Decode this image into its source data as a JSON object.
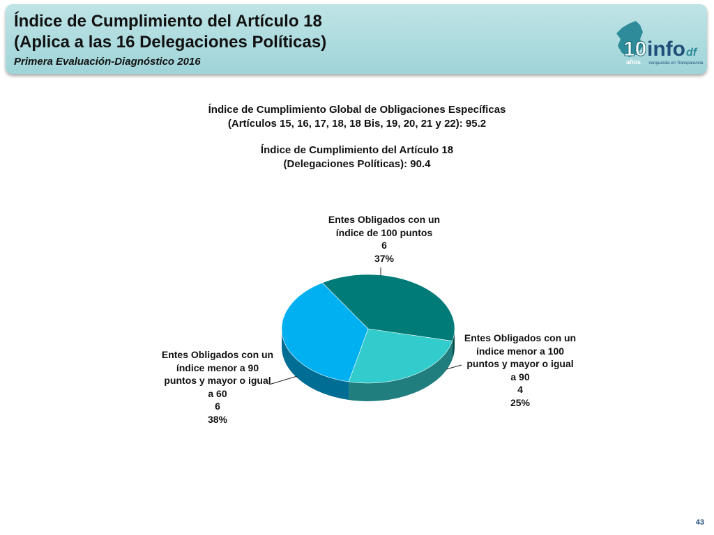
{
  "header": {
    "title_line1": "Índice de Cumplimiento del Artículo 18",
    "title_line2": "(Aplica a las 16 Delegaciones Políticas)",
    "subtitle": "Primera Evaluación-Diagnóstico 2016",
    "logo_text": "info",
    "logo_suffix": "df",
    "logo_years_number": "10",
    "logo_years_word": "años",
    "logo_tagline": "Vanguardia en Transparencia",
    "background_color": "#a9d9dc"
  },
  "headline": {
    "line1": "Índice de Cumplimiento Global de Obligaciones Específicas",
    "line2": "(Artículos 15, 16, 17, 18, 18 Bis, 19, 20, 21 y 22): 95.2",
    "line3": "Índice de Cumplimiento del Artículo 18",
    "line4": "(Delegaciones Políticas): 90.4"
  },
  "chart_data": {
    "type": "pie",
    "title": "",
    "style": "3d",
    "slices": [
      {
        "label_lines": [
          "Entes Obligados con un",
          "índice de 100 puntos"
        ],
        "value": 6,
        "percent": "37%",
        "color": "#007b78"
      },
      {
        "label_lines": [
          "Entes Obligados con un",
          "índice  menor a 100",
          "puntos y mayor o igual",
          "a 90"
        ],
        "value": 4,
        "percent": "25%",
        "color": "#33cccc"
      },
      {
        "label_lines": [
          "Entes Obligados con un",
          "índice menor a 90",
          "puntos y mayor o igual",
          "a 60"
        ],
        "value": 6,
        "percent": "38%",
        "color": "#00b0f0"
      }
    ]
  },
  "page_number": "43"
}
